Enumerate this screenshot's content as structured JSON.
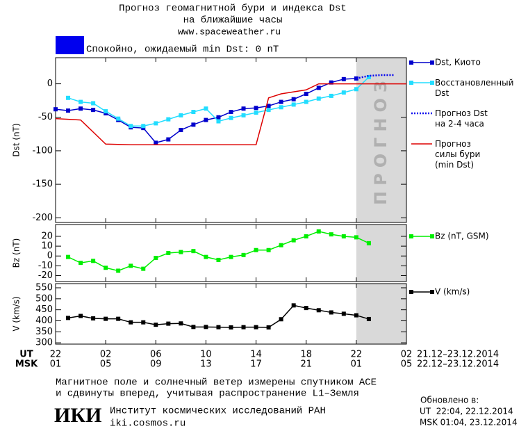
{
  "header": {
    "title_lines": [
      "Прогноз геомагнитной бури и индекса Dst",
      "на ближайшие часы"
    ],
    "url": "www.spaceweather.ru",
    "status_color": "#0000ee",
    "status": "Спокойно, ожидаемый min Dst: 0 nT"
  },
  "chart_data": [
    {
      "type": "line",
      "ylabel": "Dst (nT)",
      "xlim": [
        0,
        28
      ],
      "ylim": [
        -207,
        39
      ],
      "yticks": [
        0,
        -50,
        -100,
        -150,
        -200
      ],
      "forecast_region": {
        "range": [
          24,
          28
        ],
        "label": "ПРОГНОЗ"
      },
      "series": [
        {
          "name": "Dst, Киото",
          "color": "#0000cc",
          "marker": "square",
          "dash": "solid",
          "x": [
            0,
            1,
            2,
            3,
            4,
            5,
            6,
            7,
            8,
            9,
            10,
            11,
            12,
            13,
            14,
            15,
            16,
            17,
            18,
            19,
            20,
            21,
            22,
            23,
            24
          ],
          "values": [
            -38,
            -40,
            -37,
            -39,
            -44,
            -54,
            -65,
            -66,
            -88,
            -83,
            -69,
            -61,
            -54,
            -50,
            -42,
            -37,
            -36,
            -33,
            -27,
            -23,
            -15,
            -6,
            2,
            7,
            8
          ]
        },
        {
          "name": "Восстановленный\nDst",
          "color": "#22ddff",
          "marker": "square",
          "dash": "solid",
          "x": [
            1,
            2,
            3,
            4,
            5,
            6,
            7,
            8,
            9,
            10,
            11,
            12,
            13,
            14,
            15,
            16,
            17,
            18,
            19,
            20,
            21,
            22,
            23,
            24,
            25
          ],
          "values": [
            -21,
            -27,
            -29,
            -41,
            -52,
            -63,
            -63,
            -59,
            -53,
            -47,
            -42,
            -37,
            -56,
            -51,
            -47,
            -43,
            -39,
            -35,
            -31,
            -27,
            -22,
            -18,
            -13,
            -8,
            10
          ]
        },
        {
          "name": "Прогноз Dst\nна 2-4 часа",
          "color": "#0000ee",
          "marker": "none",
          "dash": "dotted",
          "x": [
            24,
            25,
            26,
            27
          ],
          "values": [
            8,
            12,
            13,
            13
          ]
        },
        {
          "name": "Прогноз\nсилы бури\n(min Dst)",
          "color": "#dd0000",
          "marker": "none",
          "dash": "solid",
          "x": [
            0,
            2,
            4,
            6,
            16,
            17,
            18,
            20,
            21,
            28
          ],
          "values": [
            -52,
            -54,
            -90,
            -91,
            -91,
            -21,
            -15,
            -9,
            0,
            0
          ]
        }
      ]
    },
    {
      "type": "line",
      "ylabel": "Bz (nT)",
      "xlim": [
        0,
        28
      ],
      "ylim": [
        -26,
        32
      ],
      "yticks": [
        20,
        10,
        0,
        -10,
        -20
      ],
      "forecast_region": {
        "range": [
          24,
          28
        ]
      },
      "series": [
        {
          "name": "Bz (nT, GSM)",
          "color": "#00ee00",
          "marker": "square",
          "dash": "solid",
          "x": [
            1,
            2,
            3,
            4,
            5,
            6,
            7,
            8,
            9,
            10,
            11,
            12,
            13,
            14,
            15,
            16,
            17,
            18,
            19,
            20,
            21,
            22,
            23,
            24,
            25
          ],
          "values": [
            -1,
            -7,
            -5,
            -12,
            -15,
            -10,
            -13,
            -2,
            3,
            4,
            5,
            -1,
            -4,
            -1,
            1,
            6,
            6,
            11,
            16,
            20,
            25,
            22,
            20,
            19,
            13
          ]
        }
      ]
    },
    {
      "type": "line",
      "ylabel": "V (km/s)",
      "xlim": [
        0,
        28
      ],
      "ylim": [
        294,
        569
      ],
      "yticks": [
        550,
        500,
        450,
        400,
        350,
        300
      ],
      "forecast_region": {
        "range": [
          24,
          28
        ]
      },
      "series": [
        {
          "name": "V (km/s)",
          "color": "#000000",
          "marker": "square",
          "dash": "solid",
          "x": [
            1,
            2,
            3,
            4,
            5,
            6,
            7,
            8,
            9,
            10,
            11,
            12,
            13,
            14,
            15,
            16,
            17,
            18,
            19,
            20,
            21,
            22,
            23,
            24,
            25
          ],
          "values": [
            413,
            422,
            411,
            409,
            409,
            393,
            393,
            382,
            387,
            388,
            372,
            372,
            371,
            370,
            371,
            371,
            370,
            407,
            470,
            458,
            448,
            438,
            432,
            425,
            408
          ]
        }
      ],
      "xticks": [
        {
          "value": 0,
          "label": "22"
        },
        {
          "value": 4,
          "label": "02"
        },
        {
          "value": 8,
          "label": "06"
        },
        {
          "value": 12,
          "label": "10"
        },
        {
          "value": 16,
          "label": "14"
        },
        {
          "value": 20,
          "label": "18"
        },
        {
          "value": 24,
          "label": "22"
        },
        {
          "value": 28,
          "label": "02"
        }
      ],
      "xticks_msk": [
        {
          "value": 0,
          "label": "01"
        },
        {
          "value": 4,
          "label": "05"
        },
        {
          "value": 8,
          "label": "09"
        },
        {
          "value": 12,
          "label": "13"
        },
        {
          "value": 16,
          "label": "17"
        },
        {
          "value": 20,
          "label": "21"
        },
        {
          "value": 24,
          "label": "01"
        },
        {
          "value": 28,
          "label": "05"
        }
      ],
      "xrow_names": [
        "UT",
        "MSK"
      ],
      "xrow_ranges": [
        "21.12–23.12.2014",
        "22.12–23.12.2014"
      ]
    }
  ],
  "footer": {
    "note_lines": [
      "Магнитное поле и солнечный ветер измерены спутником ACE",
      "и сдвинуты вперед, учитывая распространение L1–Земля"
    ],
    "logo": "ИКИ",
    "institute": "Институт космических исследований РАН",
    "site": "iki.cosmos.ru",
    "updated_title": "Обновлено в:",
    "updated_lines": [
      "UT  22:04, 22.12.2014",
      "MSK 01:04, 23.12.2014"
    ]
  }
}
